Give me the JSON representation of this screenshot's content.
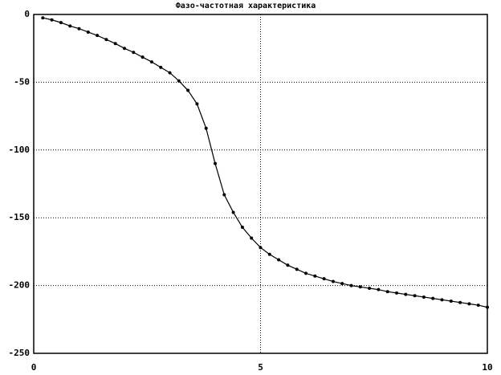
{
  "chart_data": {
    "type": "line",
    "title": "Фазо-частотная характеристика",
    "x": [
      0.2,
      0.4,
      0.6,
      0.8,
      1.0,
      1.2,
      1.4,
      1.6,
      1.8,
      2.0,
      2.2,
      2.4,
      2.6,
      2.8,
      3.0,
      3.2,
      3.4,
      3.6,
      3.8,
      4.0,
      4.2,
      4.4,
      4.6,
      4.8,
      5.0,
      5.2,
      5.4,
      5.6,
      5.8,
      6.0,
      6.2,
      6.4,
      6.6,
      6.8,
      7.0,
      7.2,
      7.4,
      7.6,
      7.8,
      8.0,
      8.2,
      8.4,
      8.6,
      8.8,
      9.0,
      9.2,
      9.4,
      9.6,
      9.8,
      10.0
    ],
    "values": [
      -2.5,
      -4,
      -6,
      -8.5,
      -10.5,
      -13,
      -15.5,
      -18.5,
      -21.5,
      -25,
      -28,
      -31.5,
      -35,
      -39,
      -43,
      -49,
      -56,
      -66,
      -84,
      -110,
      -133,
      -146,
      -157,
      -165,
      -172,
      -177,
      -181,
      -185,
      -188,
      -191,
      -193,
      -195,
      -197,
      -198.5,
      -200,
      -201,
      -202,
      -203,
      -204.5,
      -205.5,
      -206.5,
      -207.5,
      -208.5,
      -209.5,
      -210.5,
      -211.5,
      -212.5,
      -213.5,
      -214.5,
      -216
    ],
    "color": "#000000",
    "xlim": [
      0,
      10
    ],
    "xticks": [
      0,
      5,
      10
    ],
    "ylim": [
      -250,
      0
    ],
    "yticks": [
      0,
      -50,
      -100,
      -150,
      -200,
      -250
    ],
    "grid": true
  }
}
